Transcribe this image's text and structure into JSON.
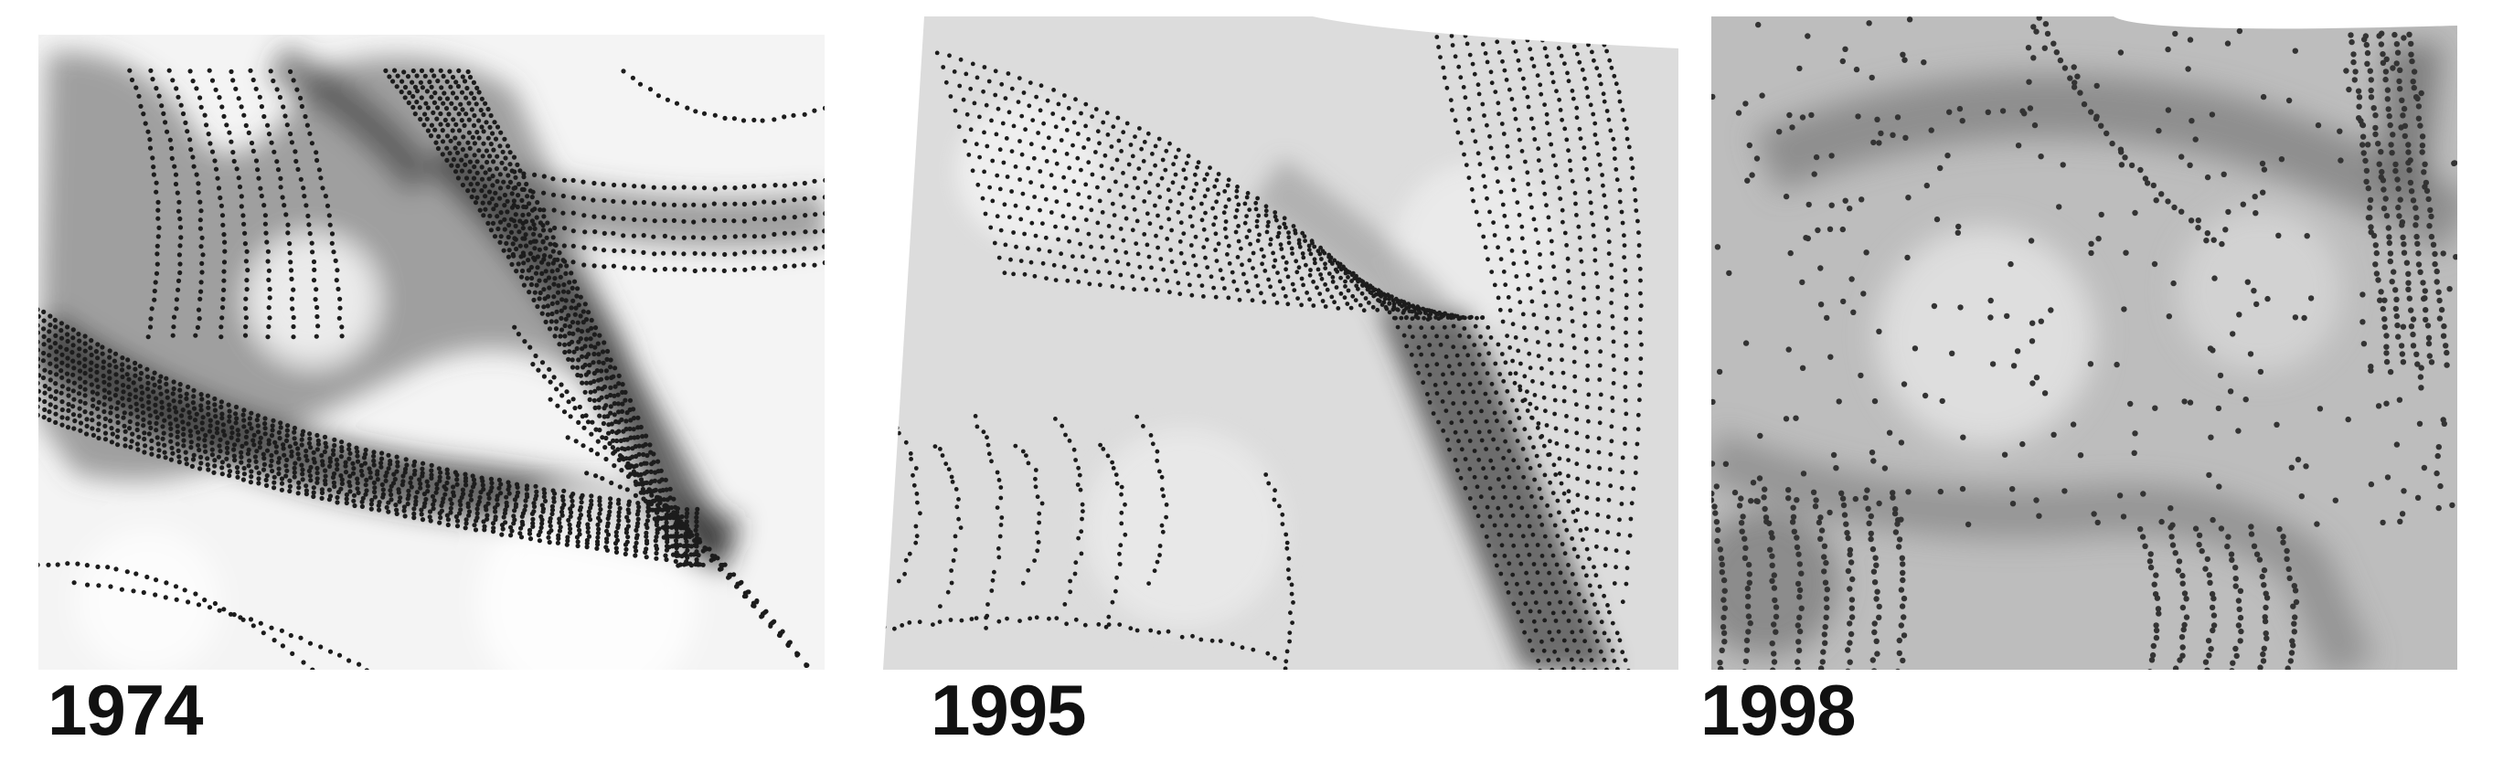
{
  "panels": [
    {
      "year": "1974",
      "shading": "dark-gray"
    },
    {
      "year": "1995",
      "shading": "light-gray"
    },
    {
      "year": "1998",
      "shading": "mid-gray"
    }
  ],
  "colors": {
    "background": "#ffffff",
    "dot": "#1c1c1c",
    "label": "#111111"
  }
}
